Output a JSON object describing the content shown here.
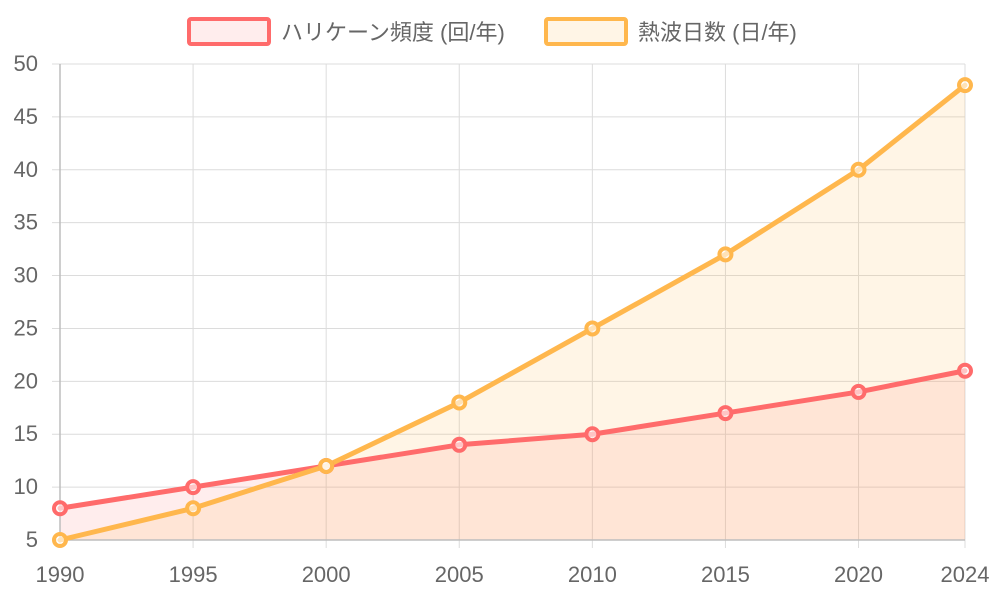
{
  "chart_data": {
    "type": "line",
    "categories": [
      "1990",
      "1995",
      "2000",
      "2005",
      "2010",
      "2015",
      "2020",
      "2024"
    ],
    "x": [
      1990,
      1995,
      2000,
      2005,
      2010,
      2015,
      2020,
      2024
    ],
    "ylim": [
      5,
      50
    ],
    "yticks": [
      "5",
      "10",
      "15",
      "20",
      "25",
      "30",
      "35",
      "40",
      "45",
      "50"
    ],
    "grid": true,
    "legend_position": "top",
    "series": [
      {
        "name": "ハリケーン頻度 (回/年)",
        "values": [
          8,
          10,
          12,
          14,
          15,
          17,
          19,
          21
        ],
        "color": "#ff6b6b",
        "fill": "rgba(255,107,107,0.12)"
      },
      {
        "name": "熱波日数 (日/年)",
        "values": [
          5,
          8,
          12,
          18,
          25,
          32,
          40,
          48
        ],
        "color": "#ffb74d",
        "fill": "rgba(255,183,77,0.14)"
      }
    ]
  }
}
